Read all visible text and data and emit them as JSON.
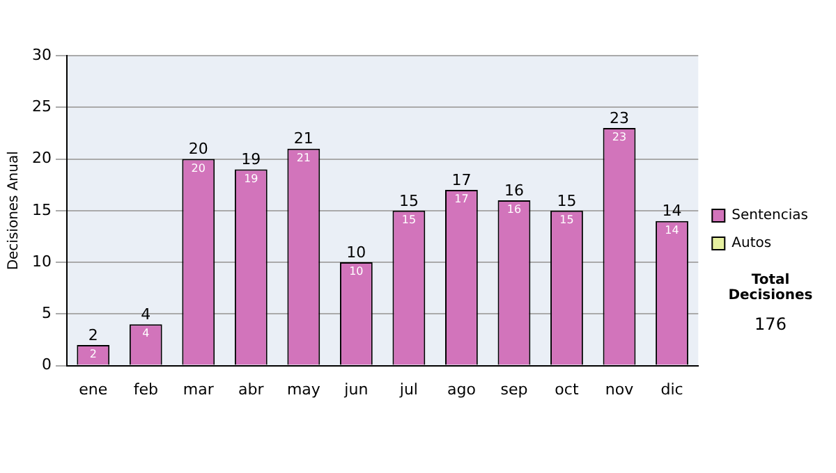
{
  "chart_data": {
    "type": "bar",
    "ylabel": "Decisiones Anual",
    "categories": [
      "ene",
      "feb",
      "mar",
      "abr",
      "may",
      "jun",
      "jul",
      "ago",
      "sep",
      "oct",
      "nov",
      "dic"
    ],
    "series": [
      {
        "name": "Sentencias",
        "color": "#d274bb",
        "values": [
          2,
          4,
          20,
          19,
          21,
          10,
          15,
          17,
          16,
          15,
          23,
          14
        ],
        "value_labels": [
          "2",
          "4",
          "20",
          "19",
          "21",
          "10",
          "15",
          "17",
          "16",
          "15",
          "23",
          "14"
        ]
      },
      {
        "name": "Autos",
        "color": "#e6f0a0",
        "values": [
          0,
          0,
          0,
          0,
          0,
          0,
          0,
          0,
          0,
          0,
          0,
          0
        ]
      }
    ],
    "stacked": true,
    "totals": [
      "2",
      "4",
      "20",
      "19",
      "21",
      "10",
      "15",
      "17",
      "16",
      "15",
      "23",
      "14"
    ],
    "ylim": [
      0,
      30
    ],
    "yticks": [
      0,
      5,
      10,
      15,
      20,
      25,
      30
    ],
    "grid": "y",
    "legend": "right",
    "annotations": [
      "Total Decisiones",
      "176"
    ]
  }
}
